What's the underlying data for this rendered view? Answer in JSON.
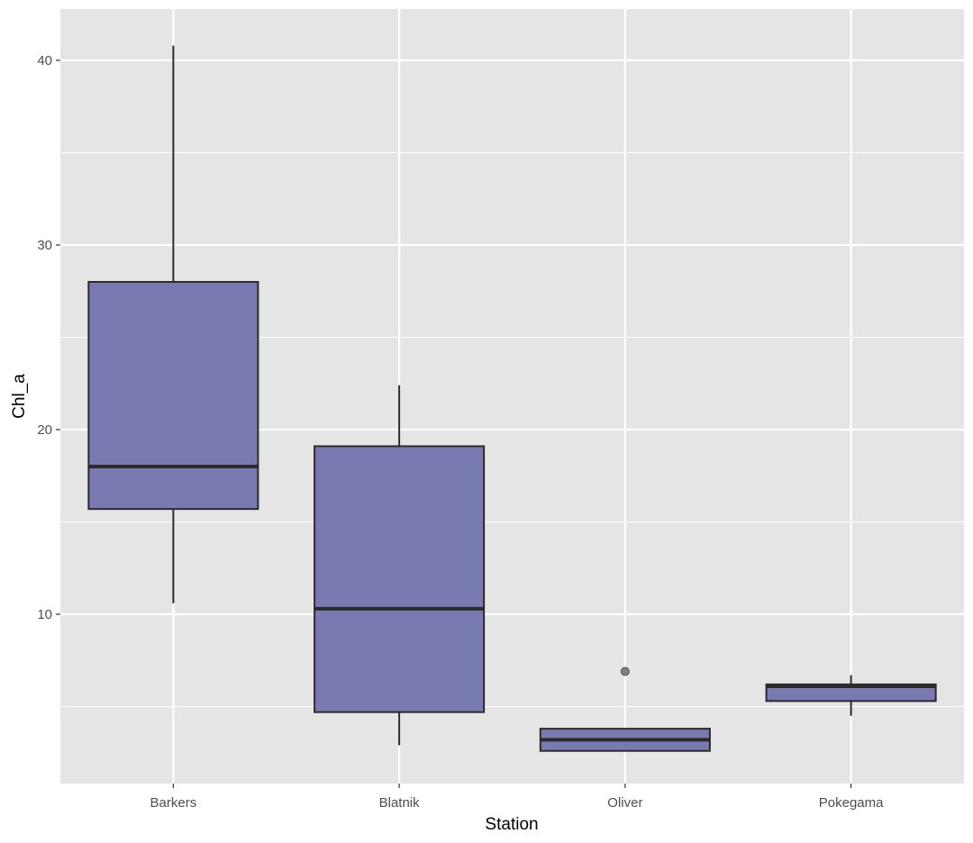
{
  "chart_data": {
    "type": "boxplot",
    "xlabel": "Station",
    "ylabel": "Chl_a",
    "categories": [
      "Barkers",
      "Blatnik",
      "Oliver",
      "Pokegama"
    ],
    "ylim": [
      0.83,
      42.78
    ],
    "yticks": [
      10,
      20,
      30,
      40
    ],
    "yticks_minor": [
      5,
      15,
      25,
      35
    ],
    "grid": true,
    "boxes": [
      {
        "category": "Barkers",
        "whisker_low": 10.6,
        "q1": 15.7,
        "median": 18.0,
        "q3": 28.0,
        "whisker_high": 40.8,
        "outliers": []
      },
      {
        "category": "Blatnik",
        "whisker_low": 2.9,
        "q1": 4.7,
        "median": 10.3,
        "q3": 19.1,
        "whisker_high": 22.4,
        "outliers": []
      },
      {
        "category": "Oliver",
        "whisker_low": 2.6,
        "q1": 2.6,
        "median": 3.2,
        "q3": 3.8,
        "whisker_high": 3.8,
        "outliers": [
          6.9
        ]
      },
      {
        "category": "Pokegama",
        "whisker_low": 4.5,
        "q1": 5.3,
        "median": 6.1,
        "q3": 6.2,
        "whisker_high": 6.7,
        "outliers": []
      }
    ],
    "colors": {
      "fill": "#7576AE",
      "line": "#2b2b2b",
      "panel": "#E5E5E5",
      "grid": "#FFFFFF",
      "outlier": "#7f7f7f"
    }
  }
}
